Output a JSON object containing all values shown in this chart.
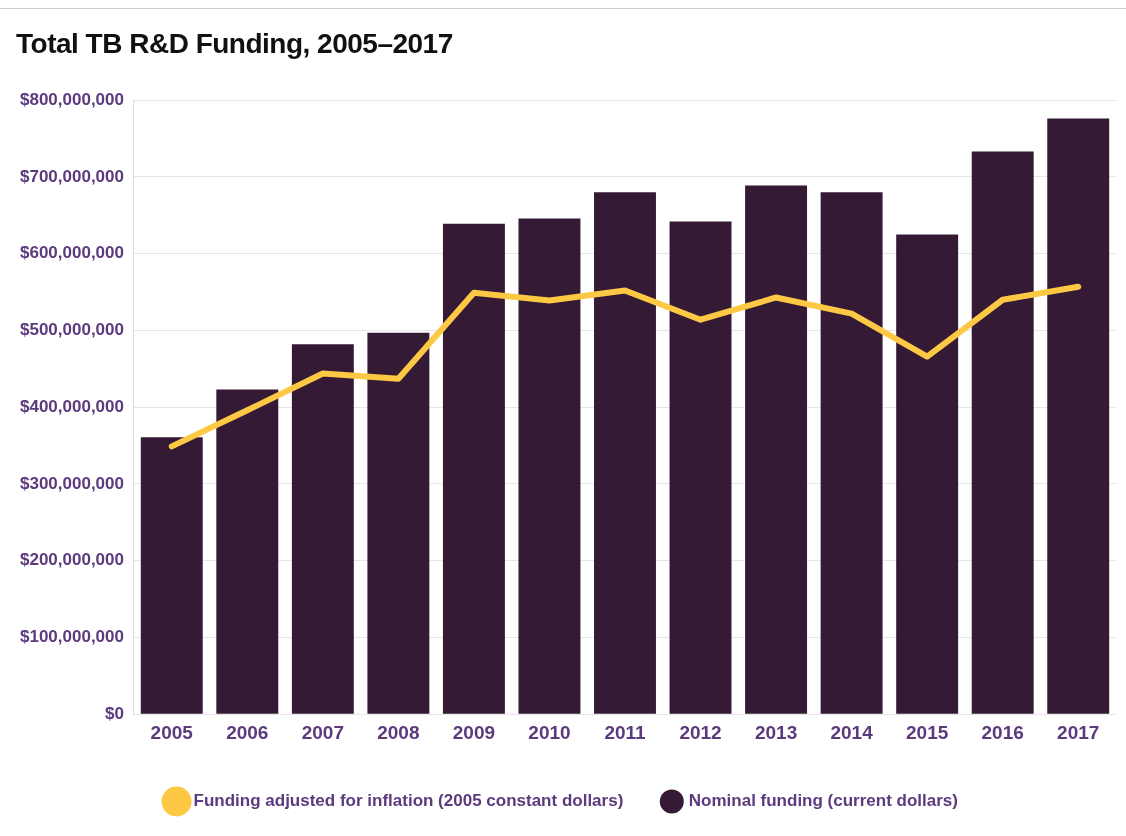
{
  "chart_data": {
    "type": "bar",
    "title": "Total TB R&D Funding, 2005–2017",
    "categories": [
      "2005",
      "2006",
      "2007",
      "2008",
      "2009",
      "2010",
      "2011",
      "2012",
      "2013",
      "2014",
      "2015",
      "2016",
      "2017"
    ],
    "series": [
      {
        "name": "Funding adjusted for inflation (2005 constant dollars)",
        "type": "line",
        "color": "#fdc843",
        "values": [
          349000000,
          396000000,
          444000000,
          437000000,
          549000000,
          539000000,
          552000000,
          514000000,
          543000000,
          522000000,
          466000000,
          540000000,
          557000000
        ]
      },
      {
        "name": "Nominal funding (current dollars)",
        "color": "#351a35",
        "values": [
          361000000,
          423000000,
          482000000,
          497000000,
          639000000,
          646000000,
          680000000,
          642000000,
          689000000,
          680000000,
          625000000,
          733000000,
          776000000
        ]
      }
    ],
    "ylim": [
      0,
      800000000
    ],
    "yticks": [
      {
        "value": 0,
        "label": "$0"
      },
      {
        "value": 100000000,
        "label": "$100,000,000"
      },
      {
        "value": 200000000,
        "label": "$200,000,000"
      },
      {
        "value": 300000000,
        "label": "$300,000,000"
      },
      {
        "value": 400000000,
        "label": "$400,000,000"
      },
      {
        "value": 500000000,
        "label": "$500,000,000"
      },
      {
        "value": 600000000,
        "label": "$600,000,000"
      },
      {
        "value": 700000000,
        "label": "$700,000,000"
      },
      {
        "value": 800000000,
        "label": "$800,000,000"
      }
    ],
    "grid": "y",
    "legend": "bottom"
  }
}
